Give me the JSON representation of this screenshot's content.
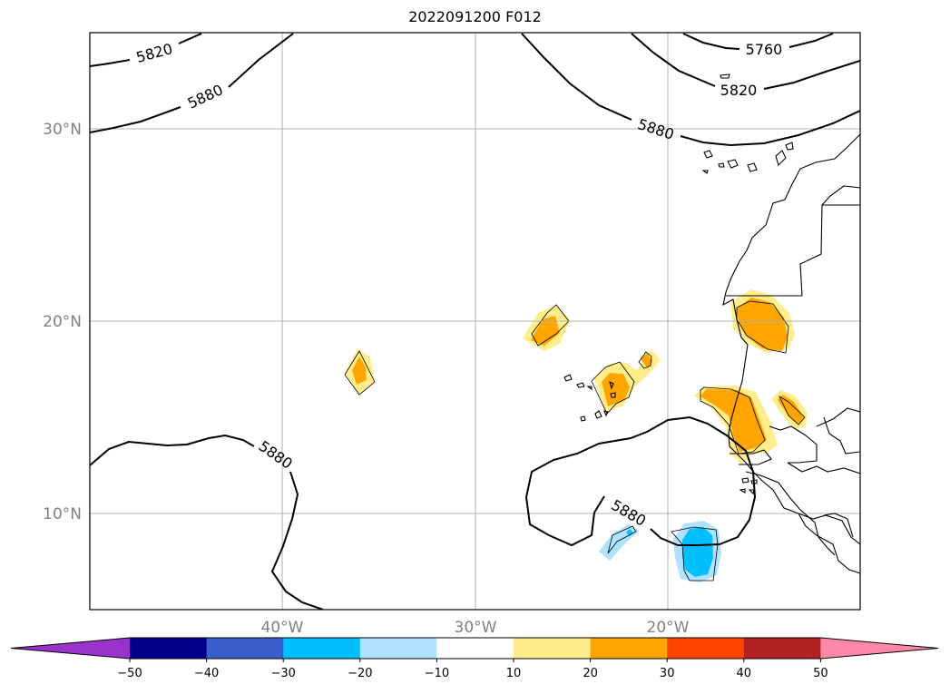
{
  "title": "2022091200 F012",
  "lat_labels": [
    "30°N",
    "20°N",
    "10°N"
  ],
  "lon_labels": [
    "40°W",
    "30°W",
    "20°W"
  ],
  "contours": [
    {
      "label": "5820",
      "level": 5820
    },
    {
      "label": "5880",
      "level": 5880
    },
    {
      "label": "5760",
      "level": 5760
    },
    {
      "label": "5820",
      "level": 5820
    },
    {
      "label": "5880",
      "level": 5880
    },
    {
      "label": "5880",
      "level": 5880
    },
    {
      "label": "5880",
      "level": 5880
    }
  ],
  "colorbar": {
    "ticks": [
      "−50",
      "−40",
      "−30",
      "−20",
      "−10",
      "10",
      "20",
      "30",
      "40",
      "50"
    ],
    "colors": [
      "#9933cc",
      "#00008b",
      "#3a5fcd",
      "#00bfff",
      "#b0e2ff",
      "#ffffff",
      "#ffec8b",
      "#ffa500",
      "#ff4500",
      "#b22222",
      "#ff88aa"
    ]
  },
  "shading_colors": {
    "light_yellow": "#ffec8b",
    "orange": "#ffa500",
    "light_blue": "#b0e2ff",
    "deep_sky_blue": "#00bfff"
  }
}
